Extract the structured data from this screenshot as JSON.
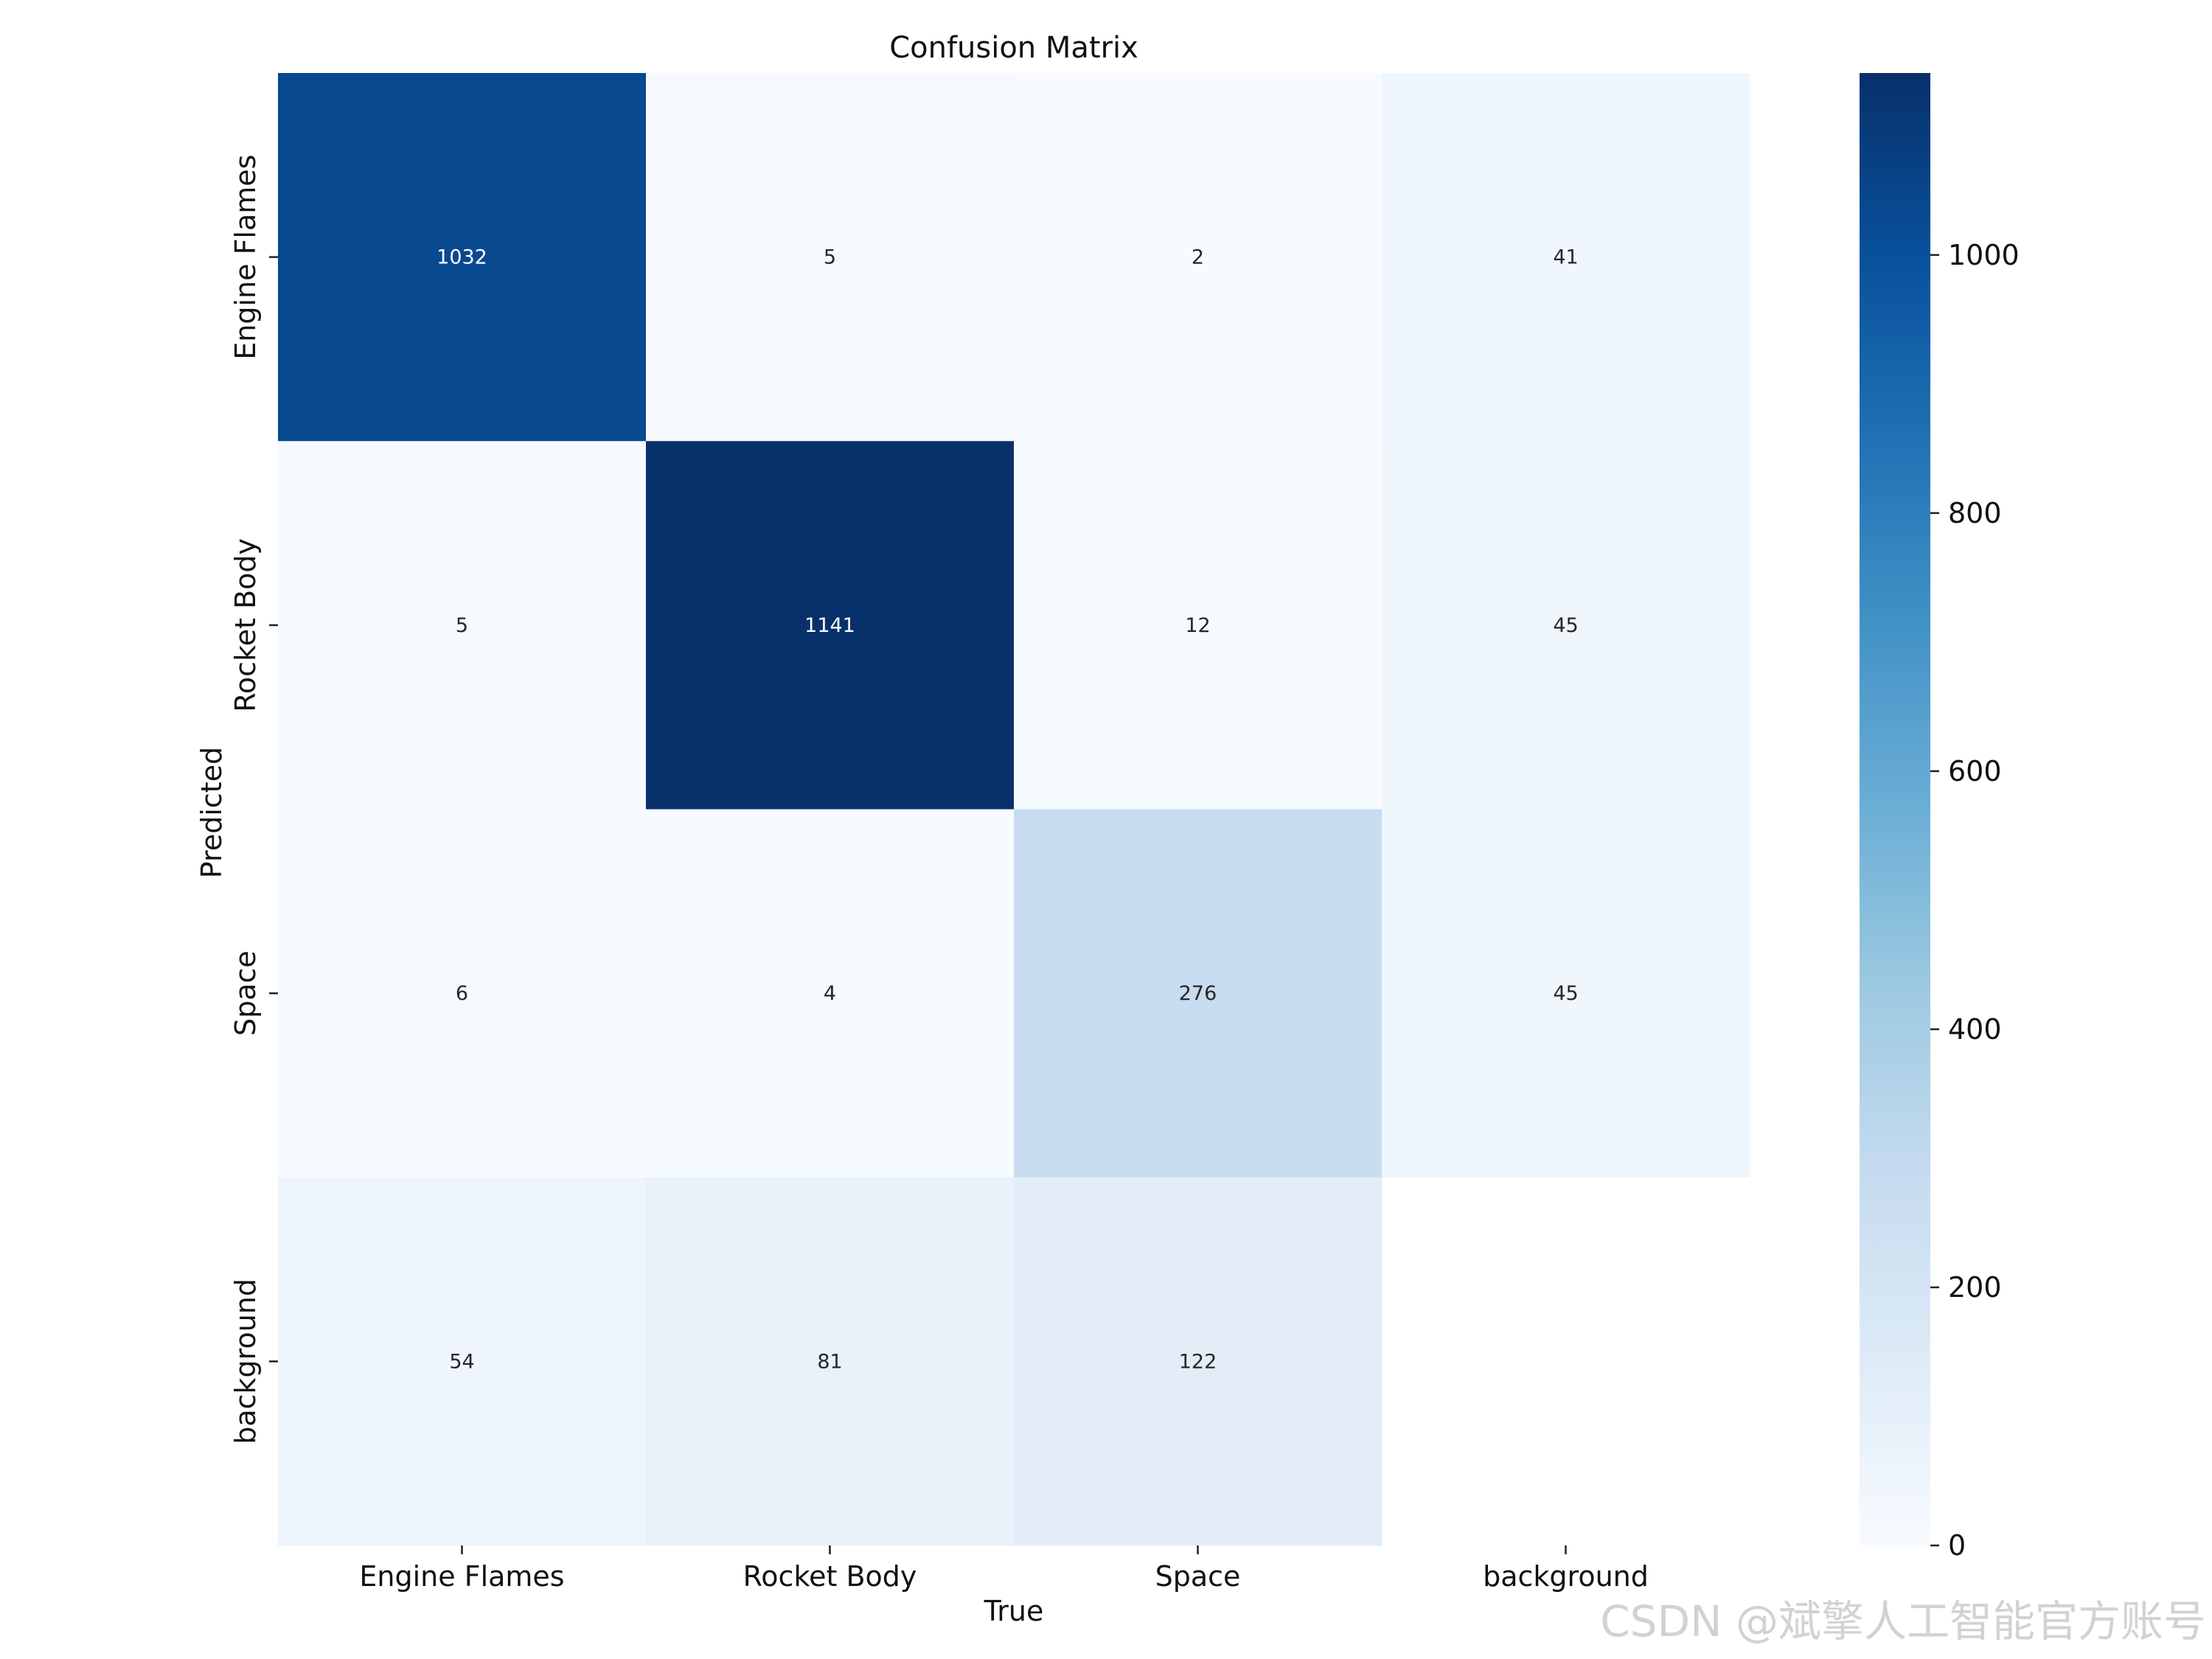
{
  "chart_data": {
    "type": "heatmap",
    "title": "Confusion Matrix",
    "xlabel": "True",
    "ylabel": "Predicted",
    "x_categories": [
      "Engine Flames",
      "Rocket Body",
      "Space",
      "background"
    ],
    "y_categories": [
      "Engine Flames",
      "Rocket Body",
      "Space",
      "background"
    ],
    "matrix": [
      [
        1032,
        5,
        2,
        41
      ],
      [
        5,
        1141,
        12,
        45
      ],
      [
        6,
        4,
        276,
        45
      ],
      [
        54,
        81,
        122,
        null
      ]
    ],
    "colorbar": {
      "range": [
        0,
        1141
      ],
      "ticks": [
        0,
        200,
        400,
        600,
        800,
        1000
      ]
    },
    "colormap": "Blues",
    "colors": {
      "low": "#f7fbff",
      "high": "#08306b"
    }
  },
  "watermark": "CSDN @斌擎人工智能官方账号"
}
